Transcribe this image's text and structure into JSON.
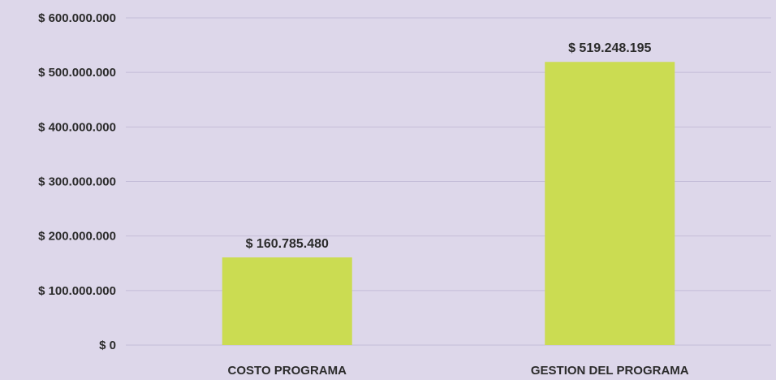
{
  "chart_data": {
    "type": "bar",
    "title": "",
    "xlabel": "",
    "ylabel": "",
    "categories": [
      "COSTO PROGRAMA",
      "GESTION DEL PROGRAMA"
    ],
    "values": [
      160785480,
      519248195
    ],
    "data_labels": [
      "$ 160.785.480",
      "$ 519.248.195"
    ],
    "ylim": [
      0,
      600000000
    ],
    "yticks": [
      0,
      100000000,
      200000000,
      300000000,
      400000000,
      500000000,
      600000000
    ],
    "ytick_labels": [
      "$ 0",
      "$ 100.000.000",
      "$ 200.000.000",
      "$ 300.000.000",
      "$ 400.000.000",
      "$ 500.000.000",
      "$ 600.000.000"
    ],
    "grid": true,
    "legend": "none"
  },
  "colors": {
    "background": "#ddd7ea",
    "plot_background": "#ddd7ea",
    "bar": "#cbdc52",
    "gridline": "#c4bdd8",
    "text": "#2b2b2b"
  }
}
